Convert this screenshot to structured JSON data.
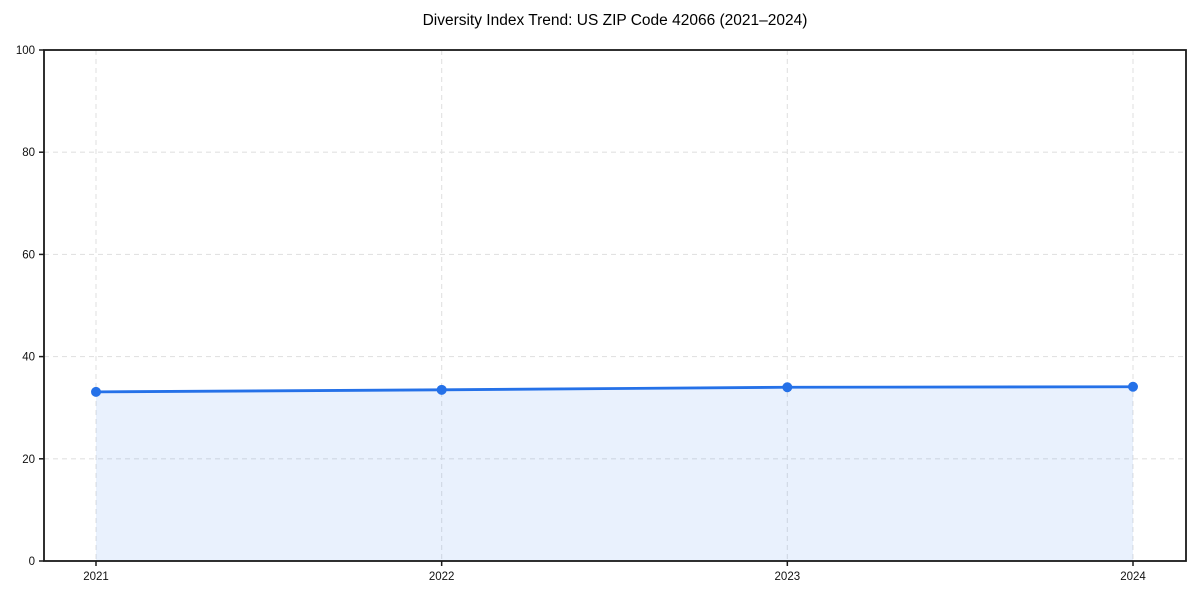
{
  "page": {
    "background": "#ffffff"
  },
  "chart_data": {
    "type": "line",
    "title": "Diversity Index Trend: US ZIP Code 42066 (2021–2024)",
    "categories": [
      "2021",
      "2022",
      "2023",
      "2024"
    ],
    "series": [
      {
        "name": "Diversity Index",
        "values": [
          33.1,
          33.5,
          34.0,
          34.1
        ]
      }
    ],
    "xlabel": "",
    "ylabel": "",
    "ylim": [
      0,
      100
    ],
    "yticks": [
      0,
      20,
      40,
      60,
      80,
      100
    ],
    "ytick_labels": [
      "0",
      "20",
      "40",
      "60",
      "80",
      "100"
    ],
    "grid": true,
    "grid_style": "dashed",
    "legend_position": "none",
    "area_fill": true,
    "marker": "circle",
    "colors": {
      "line": "#2571e8",
      "marker": "#2571e8",
      "area": "#2571e8",
      "area_opacity": 0.1,
      "grid": "#e2e2e2",
      "spine": "#1a1a1a",
      "tick": "#1a1a1a",
      "tick_label": "#111111",
      "title": "#000000"
    }
  }
}
